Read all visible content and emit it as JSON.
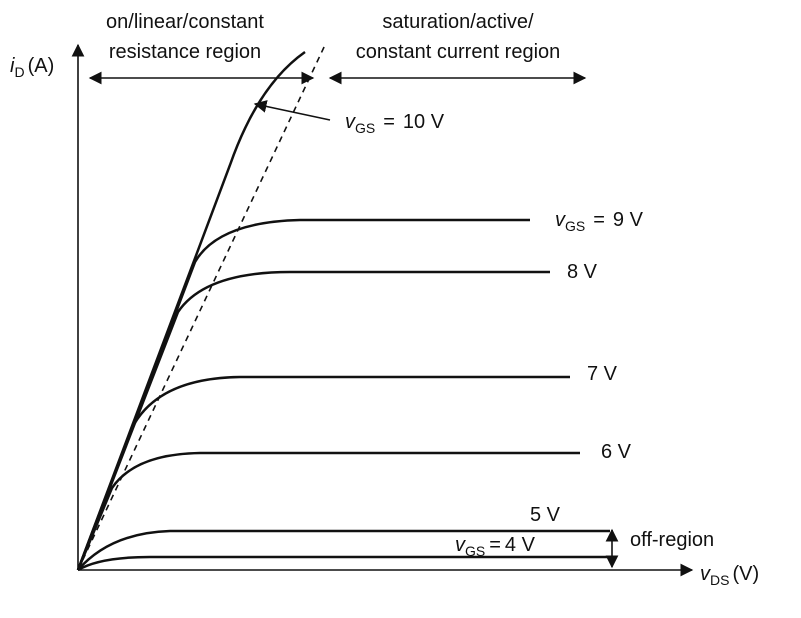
{
  "regions": {
    "linear": {
      "line1": "on/linear/constant",
      "line2": "resistance region"
    },
    "saturation": {
      "line1": "saturation/active/",
      "line2": "constant current region"
    },
    "off": "off-region"
  },
  "axes": {
    "y": {
      "symbol": "i",
      "subscript": "D",
      "unit": "(A)"
    },
    "x": {
      "symbol": "v",
      "subscript": "DS",
      "unit": "(V)"
    }
  },
  "curves": [
    {
      "prefix": {
        "symbol": "v",
        "subscript": "GS",
        "eq": "="
      },
      "label": "10 V"
    },
    {
      "prefix": {
        "symbol": "v",
        "subscript": "GS",
        "eq": "="
      },
      "label": "9 V"
    },
    {
      "label": "8 V"
    },
    {
      "label": "7 V"
    },
    {
      "label": "6 V"
    },
    {
      "label": "5 V"
    },
    {
      "prefix": {
        "symbol": "v",
        "subscript": "GS",
        "eq": "="
      },
      "label": "4 V"
    }
  ]
}
